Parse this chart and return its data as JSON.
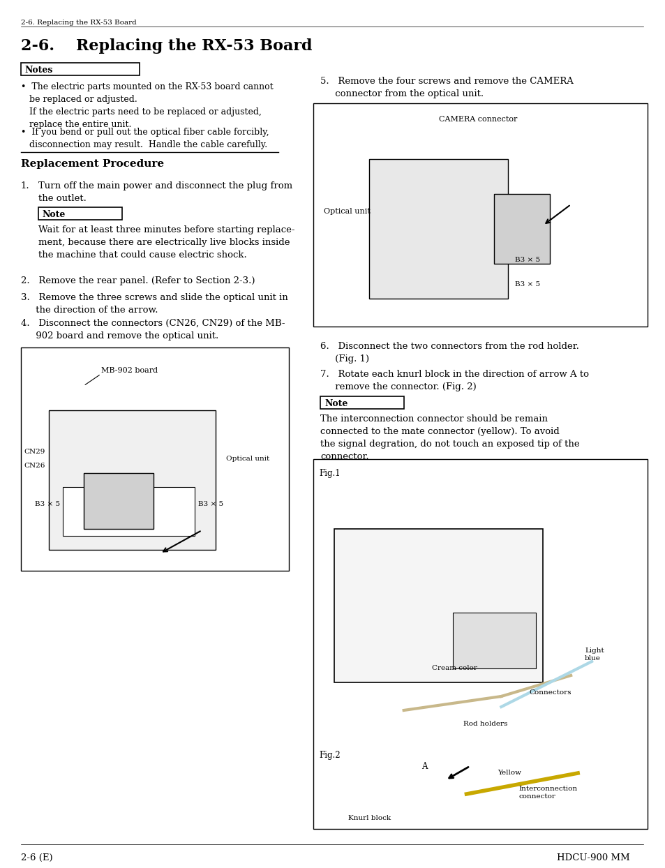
{
  "page_header": "2-6. Replacing the RX-53 Board",
  "page_footer_left": "2-6 (E)",
  "page_footer_right": "HDCU-900 MM",
  "background_color": "#ffffff",
  "text_color": "#000000",
  "title": "2-6.    Replacing the RX-53 Board",
  "notes_box_label": "Notes",
  "notes_items": [
    "•  The electric parts mounted on the RX-53 board cannot\n   be replaced or adjusted.\n   If the electric parts need to be replaced or adjusted,\n   replace the entire unit.",
    "•  If you bend or pull out the optical fiber cable forcibly,\n   disconnection may result.  Handle the cable carefully."
  ],
  "section_header": "Replacement Procedure",
  "step1_header": "Turn off the main power and disconnect the plug from\nthe outlet.",
  "note_box_label": "Note",
  "step1_note": "Wait for at least three minutes before starting replace-\nment, because there are electrically live blocks inside\nthe machine that could cause electric shock.",
  "steps_2_4": [
    "2.   Remove the rear panel. (Refer to Section 2-3.)",
    "3.   Remove the three screws and slide the optical unit in\n     the direction of the arrow.",
    "4.   Disconnect the connectors (CN26, CN29) of the MB-\n     902 board and remove the optical unit."
  ],
  "step5_text": "5.   Remove the four screws and remove the CAMERA\n     connector from the optical unit.",
  "steps_6_7": [
    "6.   Disconnect the two connectors from the rod holder.\n     (Fig. 1)",
    "7.   Rotate each knurl block in the direction of arrow A to\n     remove the connector. (Fig. 2)"
  ],
  "note2_box_label": "Note",
  "step7_note": "The interconnection connector should be remain\nconnected to the mate connector (yellow). To avoid\nthe signal degration, do not touch an exposed tip of the\nconnector.",
  "fig1_labels": {
    "camera_connector": "CAMERA connector",
    "optical_unit": "Optical unit",
    "b3x5_1": "B3 × 5",
    "b3x5_2": "B3 × 5"
  },
  "fig2_labels": {
    "mb902_board": "MB-902 board",
    "cn29": "CN29",
    "cn26": "CN26",
    "optical_unit": "Optical unit",
    "b3x5_left": "B3 × 5",
    "b3x5_right": "B3 × 5"
  },
  "fig3_labels": {
    "fig1": "Fig.1",
    "cream_color": "Cream color",
    "light_blue": "Light\nblue",
    "rod_holders": "Rod holders",
    "connectors": "Connectors",
    "fig2": "Fig.2",
    "a_label": "A",
    "yellow": "Yellow",
    "interconnection": "Interconnection\nconnector",
    "knurl_block": "Knurl block"
  }
}
